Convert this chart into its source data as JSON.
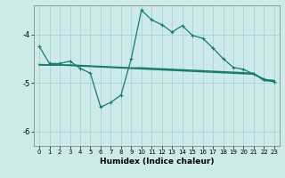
{
  "xlabel": "Humidex (Indice chaleur)",
  "bg_color": "#cceaea",
  "line_color": "#1a7a6e",
  "grid_color": "#aad4d4",
  "xlim": [
    -0.5,
    23.5
  ],
  "ylim": [
    -6.3,
    -3.4
  ],
  "yticks": [
    -6,
    -5,
    -4
  ],
  "xticks": [
    0,
    1,
    2,
    3,
    4,
    5,
    6,
    7,
    8,
    9,
    10,
    11,
    12,
    13,
    14,
    15,
    16,
    17,
    18,
    19,
    20,
    21,
    22,
    23
  ],
  "line1_x": [
    0,
    1,
    2,
    3,
    4,
    5,
    6,
    7,
    8,
    9,
    10,
    11,
    12,
    13,
    14,
    15,
    16,
    17,
    18,
    19,
    20,
    21,
    22,
    23
  ],
  "line1_y": [
    -4.25,
    -4.6,
    -4.6,
    -4.55,
    -4.7,
    -4.8,
    -5.5,
    -5.4,
    -5.25,
    -4.5,
    -3.5,
    -3.7,
    -3.8,
    -3.95,
    -3.82,
    -4.02,
    -4.08,
    -4.28,
    -4.5,
    -4.68,
    -4.72,
    -4.82,
    -4.92,
    -4.97
  ],
  "line2_x": [
    0,
    1,
    2,
    3,
    4,
    5,
    6,
    7,
    8,
    9,
    10,
    11,
    12,
    13,
    14,
    15,
    16,
    17,
    18,
    19,
    20,
    21,
    22,
    23
  ],
  "line2_y": [
    -4.62,
    -4.63,
    -4.63,
    -4.64,
    -4.65,
    -4.66,
    -4.67,
    -4.68,
    -4.69,
    -4.7,
    -4.71,
    -4.72,
    -4.73,
    -4.74,
    -4.75,
    -4.76,
    -4.77,
    -4.78,
    -4.79,
    -4.8,
    -4.81,
    -4.82,
    -4.93,
    -4.95
  ],
  "line3_x": [
    0,
    1,
    2,
    3,
    4,
    5,
    6,
    7,
    8,
    9,
    10,
    11,
    12,
    13,
    14,
    15,
    16,
    17,
    18,
    19,
    20,
    21,
    22,
    23
  ],
  "line3_y": [
    -4.63,
    -4.63,
    -4.63,
    -4.63,
    -4.64,
    -4.65,
    -4.66,
    -4.67,
    -4.68,
    -4.69,
    -4.69,
    -4.7,
    -4.71,
    -4.72,
    -4.73,
    -4.74,
    -4.75,
    -4.76,
    -4.77,
    -4.78,
    -4.79,
    -4.8,
    -4.95,
    -4.97
  ]
}
